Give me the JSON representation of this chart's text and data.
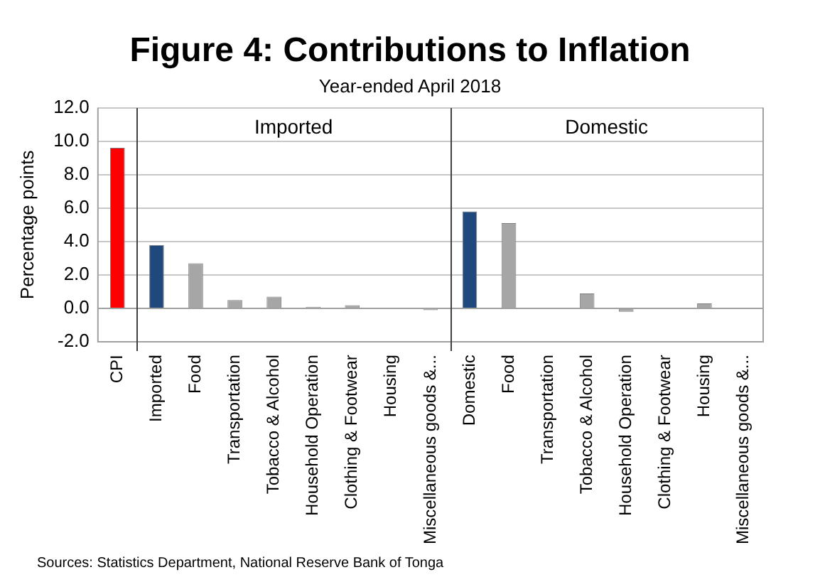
{
  "chart_data": {
    "type": "bar",
    "title": "Figure 4: Contributions to Inflation",
    "subtitle": "Year-ended April 2018",
    "ylabel": "Percentage points",
    "categories": [
      "CPI",
      "Imported",
      "Food",
      "Transportation",
      "Tobacco & Alcohol",
      "Household Operation",
      "Clothing & Footwear",
      "Housing",
      "Miscellaneous goods &...",
      "Domestic",
      "Food",
      "Transportation",
      "Tobacco & Alcohol",
      "Household Operation",
      "Clothing & Footwear",
      "Housing",
      "Miscellaneous goods &..."
    ],
    "values": [
      9.6,
      3.8,
      2.7,
      0.5,
      0.7,
      0.1,
      0.2,
      0,
      -0.1,
      5.8,
      5.1,
      0,
      0.9,
      -0.2,
      0,
      0.3,
      0
    ],
    "colors": [
      "#ff0000",
      "#1f497d",
      "#a6a6a6",
      "#a6a6a6",
      "#a6a6a6",
      "#a6a6a6",
      "#a6a6a6",
      "#a6a6a6",
      "#a6a6a6",
      "#1f497d",
      "#a6a6a6",
      "#a6a6a6",
      "#a6a6a6",
      "#a6a6a6",
      "#a6a6a6",
      "#a6a6a6",
      "#a6a6a6"
    ],
    "ylim": [
      -2,
      12
    ],
    "yticks": [
      {
        "value": -2,
        "label": "-2.0"
      },
      {
        "value": 0,
        "label": "0.0"
      },
      {
        "value": 2,
        "label": "2.0"
      },
      {
        "value": 4,
        "label": "4.0"
      },
      {
        "value": 6,
        "label": "6.0"
      },
      {
        "value": 8,
        "label": "8.0"
      },
      {
        "value": 10,
        "label": "10.0"
      },
      {
        "value": 12,
        "label": "12.0"
      }
    ],
    "grid": "y",
    "legend": false,
    "annotations": [
      "Imported",
      "Domestic",
      "Sources: Statistics Department, National Reserve Bank of Tonga"
    ]
  }
}
